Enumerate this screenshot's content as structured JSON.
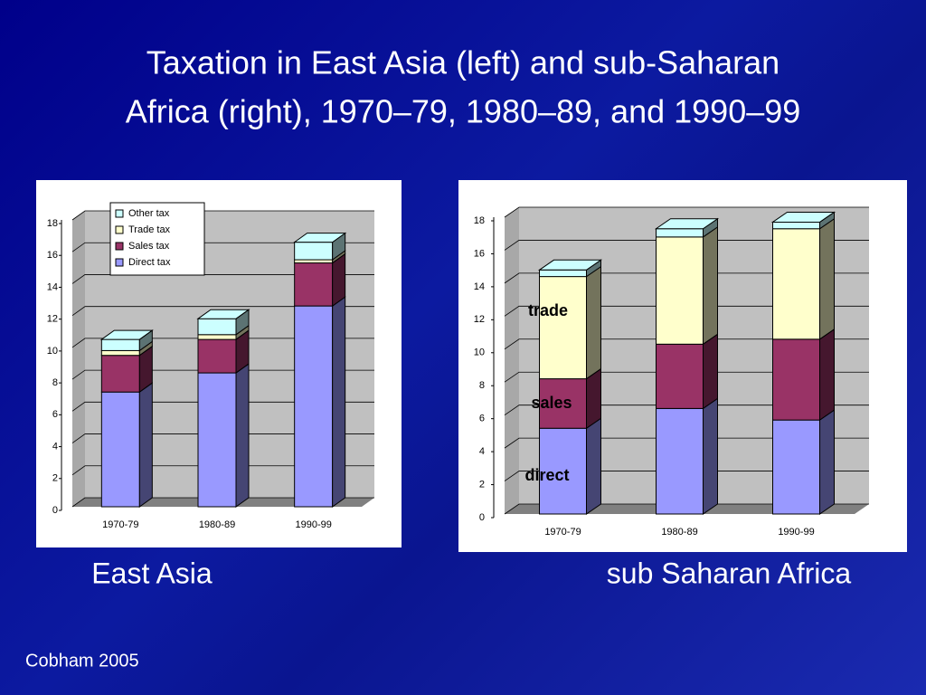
{
  "slide": {
    "title": [
      "Taxation in East Asia (left) and sub-Saharan",
      "Africa (right), 1970–79, 1980–89, and 1990–99"
    ],
    "source": "Cobham 2005"
  },
  "chart_data": [
    {
      "type": "stacked-bar-3d",
      "title": "East Asia",
      "categories": [
        "1970-79",
        "1980-89",
        "1990-99"
      ],
      "series": [
        {
          "name": "Direct tax",
          "color": "#9999ff",
          "values": [
            7.2,
            8.4,
            12.6
          ]
        },
        {
          "name": "Sales tax",
          "color": "#993366",
          "values": [
            2.3,
            2.1,
            2.7
          ]
        },
        {
          "name": "Trade tax",
          "color": "#ffffcc",
          "values": [
            0.3,
            0.3,
            0.2
          ]
        },
        {
          "name": "Other tax",
          "color": "#ccffff",
          "values": [
            0.7,
            1.0,
            1.1
          ]
        }
      ],
      "ylim": [
        0,
        18
      ],
      "yticks": [
        0,
        2,
        4,
        6,
        8,
        10,
        12,
        14,
        16,
        18
      ],
      "grid": true,
      "legend": "top-left"
    },
    {
      "type": "stacked-bar-3d",
      "title": "sub Saharan Africa",
      "categories": [
        "1970-79",
        "1980-89",
        "1990-99"
      ],
      "series": [
        {
          "name": "direct",
          "color": "#9999ff",
          "values": [
            5.2,
            6.4,
            5.7
          ]
        },
        {
          "name": "sales",
          "color": "#993366",
          "values": [
            3.0,
            3.9,
            4.9
          ]
        },
        {
          "name": "trade",
          "color": "#ffffcc",
          "values": [
            6.2,
            6.5,
            6.7
          ]
        },
        {
          "color": "#ccffff",
          "values": [
            0.4,
            0.5,
            0.4
          ]
        }
      ],
      "ylim": [
        0,
        18
      ],
      "yticks": [
        0,
        2,
        4,
        6,
        8,
        10,
        12,
        14,
        16,
        18
      ],
      "grid": true
    }
  ]
}
